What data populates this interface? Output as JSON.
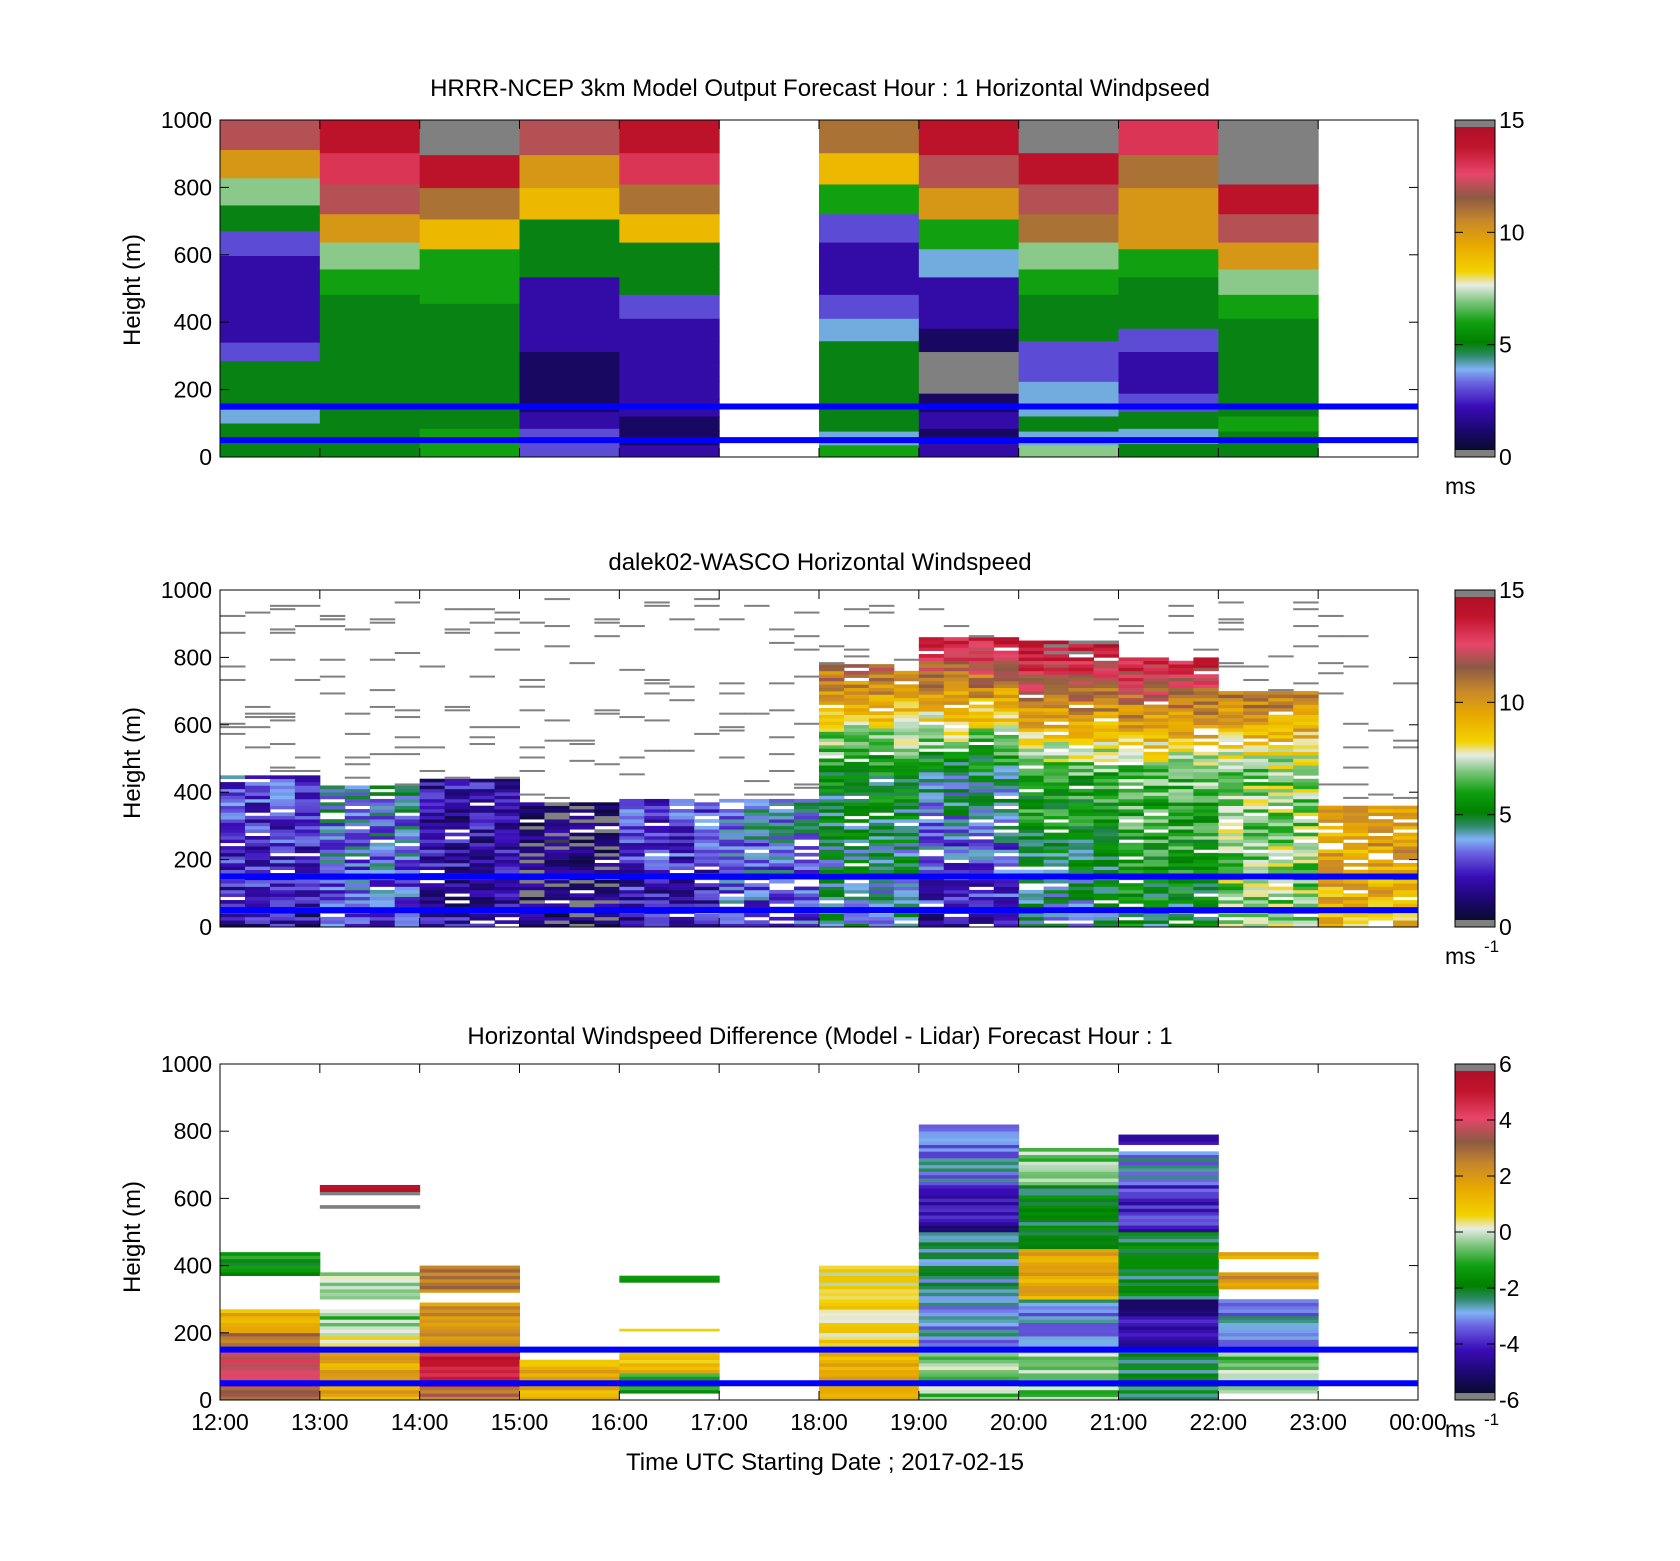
{
  "figure": {
    "xlabel": "Time UTC  Starting Date ; 2017-02-15",
    "x_ticks": [
      "12:00",
      "13:00",
      "14:00",
      "15:00",
      "16:00",
      "17:00",
      "18:00",
      "19:00",
      "20:00",
      "21:00",
      "22:00",
      "23:00",
      "00:00"
    ]
  },
  "chart_data": [
    {
      "type": "heatmap",
      "title": "HRRR-NCEP 3km Model Output   Forecast Hour : 1 Horizontal Windpseed",
      "ylabel": "Height (m)",
      "ylim": [
        0,
        1000
      ],
      "y_ticks": [
        "0",
        "200",
        "400",
        "600",
        "800",
        "1000"
      ],
      "xlim": [
        "12:00",
        "00:00"
      ],
      "colorbar": {
        "range": [
          0,
          15
        ],
        "ticks": [
          "0",
          "5",
          "10",
          "15"
        ],
        "unit": "ms",
        "unit_exp": ""
      },
      "reference_lines_m": [
        50,
        150
      ],
      "reference_line_color": "#0000ff",
      "columns": [
        {
          "time": "12:00",
          "speeds_bottom_to_top": [
            5,
            5,
            5,
            4,
            5,
            5,
            5,
            3,
            2,
            2,
            2,
            2,
            3,
            5,
            7,
            10,
            12
          ]
        },
        {
          "time": "13:00",
          "speeds_bottom_to_top": [
            5,
            5,
            5,
            5,
            5,
            5,
            5,
            5,
            5,
            6,
            7,
            10,
            12,
            13,
            14
          ]
        },
        {
          "time": "14:00",
          "speeds_bottom_to_top": [
            6,
            6,
            5,
            5,
            5,
            5,
            5,
            5,
            6,
            6,
            9,
            11,
            14,
            15
          ]
        },
        {
          "time": "15:00",
          "speeds_bottom_to_top": [
            3,
            3,
            2,
            1,
            1,
            1,
            2,
            2,
            2,
            5,
            5,
            9,
            10,
            12
          ]
        },
        {
          "time": "16:00",
          "speeds_bottom_to_top": [
            2,
            1,
            1,
            2,
            2,
            2,
            2,
            2,
            3,
            5,
            5,
            9,
            11,
            13,
            14
          ]
        },
        {
          "time": "17:00",
          "speeds_bottom_to_top": []
        },
        {
          "time": "18:00",
          "speeds_bottom_to_top": [
            6,
            4,
            5,
            5,
            5,
            5,
            5,
            4,
            3,
            2,
            2,
            3,
            6,
            9,
            11
          ]
        },
        {
          "time": "19:00",
          "speeds_bottom_to_top": [
            2,
            1,
            2,
            1,
            0,
            0,
            1,
            2,
            2,
            4,
            6,
            10,
            12,
            14
          ]
        },
        {
          "time": "20:00",
          "speeds_bottom_to_top": [
            7,
            4,
            5,
            4,
            4,
            3,
            3,
            5,
            5,
            6,
            7,
            11,
            12,
            14,
            15
          ]
        },
        {
          "time": "21:00",
          "speeds_bottom_to_top": [
            5,
            4,
            5,
            3,
            2,
            2,
            3,
            5,
            5,
            6,
            10,
            10,
            11,
            13
          ]
        },
        {
          "time": "22:00",
          "speeds_bottom_to_top": [
            5,
            5,
            6,
            5,
            5,
            5,
            5,
            5,
            6,
            7,
            10,
            12,
            14,
            15,
            15
          ]
        },
        {
          "time": "23:00",
          "speeds_bottom_to_top": []
        }
      ]
    },
    {
      "type": "heatmap",
      "title": "dalek02-WASCO  Horizontal Windspeed",
      "ylabel": "Height (m)",
      "ylim": [
        0,
        1000
      ],
      "y_ticks": [
        "0",
        "200",
        "400",
        "600",
        "800",
        "1000"
      ],
      "xlim": [
        "12:00",
        "00:00"
      ],
      "colorbar": {
        "range": [
          0,
          15
        ],
        "ticks": [
          "0",
          "5",
          "10",
          "15"
        ],
        "unit": "ms",
        "unit_exp": "-1"
      },
      "reference_lines_m": [
        50,
        150
      ],
      "reference_line_color": "#0000ff",
      "profile_summary": [
        {
          "time": "12:00",
          "low_level_speed": 2,
          "mid_level_speed": 3,
          "top_m": 450
        },
        {
          "time": "13:00",
          "low_level_speed": 3,
          "mid_level_speed": 4,
          "top_m": 420
        },
        {
          "time": "14:00",
          "low_level_speed": 2,
          "mid_level_speed": 2,
          "top_m": 440
        },
        {
          "time": "15:00",
          "low_level_speed": 1,
          "mid_level_speed": 1,
          "top_m": 370
        },
        {
          "time": "16:00",
          "low_level_speed": 2,
          "mid_level_speed": 3,
          "top_m": 380
        },
        {
          "time": "17:00",
          "low_level_speed": 3,
          "mid_level_speed": 4,
          "top_m": 380
        },
        {
          "time": "18:00",
          "low_level_speed": 4,
          "mid_level_speed": 6,
          "top_m": 780
        },
        {
          "time": "19:00",
          "low_level_speed": 2,
          "mid_level_speed": 7,
          "top_m": 860
        },
        {
          "time": "20:00",
          "low_level_speed": 4,
          "mid_level_speed": 8,
          "top_m": 850
        },
        {
          "time": "21:00",
          "low_level_speed": 5,
          "mid_level_speed": 8,
          "top_m": 800
        },
        {
          "time": "22:00",
          "low_level_speed": 7,
          "mid_level_speed": 7,
          "top_m": 700
        },
        {
          "time": "23:00",
          "low_level_speed": 9,
          "mid_level_speed": 10,
          "top_m": 360
        }
      ]
    },
    {
      "type": "heatmap",
      "title": "Horizontal Windspeed Difference (Model - Lidar) Forecast Hour : 1",
      "ylabel": "Height (m)",
      "ylim": [
        0,
        1000
      ],
      "y_ticks": [
        "0",
        "200",
        "400",
        "600",
        "800",
        "1000"
      ],
      "xlim": [
        "12:00",
        "00:00"
      ],
      "colorbar": {
        "range": [
          -6,
          6
        ],
        "ticks": [
          "-6",
          "-4",
          "-2",
          "0",
          "2",
          "4",
          "6"
        ],
        "unit": "ms",
        "unit_exp": "-1"
      },
      "reference_lines_m": [
        50,
        150
      ],
      "reference_line_color": "#0000ff",
      "columns": [
        {
          "time": "12:00",
          "segments_m": [
            [
              0,
              40,
              3.5
            ],
            [
              40,
              150,
              4
            ],
            [
              150,
              200,
              3
            ],
            [
              200,
              270,
              1.5
            ],
            [
              370,
              440,
              -1.5
            ]
          ]
        },
        {
          "time": "13:00",
          "segments_m": [
            [
              0,
              150,
              1.5
            ],
            [
              150,
              200,
              0.5
            ],
            [
              200,
              270,
              -0.5
            ],
            [
              300,
              380,
              -0.5
            ],
            [
              570,
              580,
              6
            ],
            [
              610,
              640,
              6
            ]
          ]
        },
        {
          "time": "14:00",
          "segments_m": [
            [
              0,
              40,
              3
            ],
            [
              40,
              150,
              5
            ],
            [
              150,
              290,
              2
            ],
            [
              320,
              400,
              2.5
            ]
          ]
        },
        {
          "time": "15:00",
          "segments_m": [
            [
              0,
              120,
              1.5
            ]
          ]
        },
        {
          "time": "16:00",
          "segments_m": [
            [
              20,
              80,
              -1
            ],
            [
              80,
              150,
              1
            ],
            [
              205,
              212,
              1
            ],
            [
              350,
              370,
              -1.5
            ]
          ]
        },
        {
          "time": "18:00",
          "segments_m": [
            [
              0,
              150,
              1.5
            ],
            [
              150,
              400,
              0.5
            ]
          ]
        },
        {
          "time": "19:00",
          "segments_m": [
            [
              0,
              150,
              -0.5
            ],
            [
              150,
              300,
              -3
            ],
            [
              300,
              500,
              -2.5
            ],
            [
              500,
              640,
              -4.5
            ],
            [
              640,
              820,
              -3
            ]
          ]
        },
        {
          "time": "20:00",
          "segments_m": [
            [
              0,
              150,
              -0.5
            ],
            [
              150,
              300,
              -3
            ],
            [
              300,
              450,
              1.5
            ],
            [
              450,
              640,
              -2
            ],
            [
              640,
              750,
              -0.5
            ]
          ]
        },
        {
          "time": "21:00",
          "segments_m": [
            [
              0,
              150,
              -2
            ],
            [
              150,
              300,
              -4.5
            ],
            [
              300,
              500,
              -2
            ],
            [
              500,
              640,
              -4
            ],
            [
              640,
              740,
              -3
            ],
            [
              760,
              790,
              -4
            ]
          ]
        },
        {
          "time": "22:00",
          "segments_m": [
            [
              20,
              150,
              -0.5
            ],
            [
              150,
              300,
              -3
            ],
            [
              330,
              380,
              2
            ],
            [
              420,
              440,
              1.5
            ]
          ]
        }
      ]
    }
  ]
}
